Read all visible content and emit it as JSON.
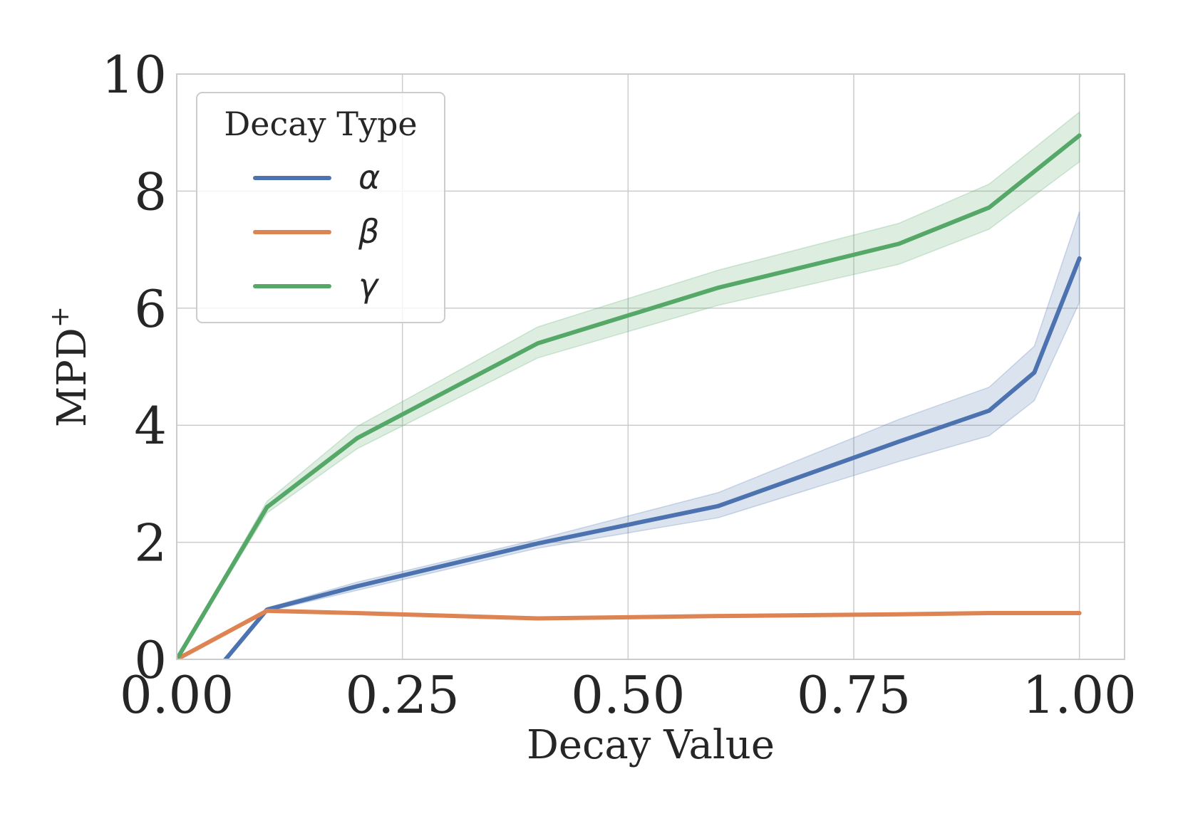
{
  "chart_data": {
    "type": "line",
    "xlabel": "Decay Value",
    "ylabel": "MPD",
    "ylabel_superscript": "+",
    "xlim": [
      0,
      1.05
    ],
    "ylim": [
      0,
      10
    ],
    "xticks": [
      "0.00",
      "0.25",
      "0.50",
      "0.75",
      "1.00"
    ],
    "yticks": [
      "0",
      "2",
      "4",
      "6",
      "8",
      "10"
    ],
    "grid": true,
    "legend": {
      "title": "Decay Type",
      "placement": "top-left"
    },
    "series": [
      {
        "name": "α",
        "color": "#4c72b0",
        "x": [
          0.0,
          0.1,
          0.2,
          0.4,
          0.6,
          0.8,
          0.9,
          0.95,
          1.0
        ],
        "y": [
          -1.0,
          0.85,
          1.25,
          1.98,
          2.62,
          3.72,
          4.25,
          4.9,
          6.85
        ],
        "lower": [
          -1.0,
          0.82,
          1.18,
          1.9,
          2.42,
          3.38,
          3.82,
          4.42,
          6.1
        ],
        "upper": [
          -1.0,
          0.88,
          1.32,
          2.05,
          2.85,
          4.1,
          4.65,
          5.35,
          7.65
        ]
      },
      {
        "name": "β",
        "color": "#dd8452",
        "x": [
          0.0,
          0.1,
          0.2,
          0.4,
          0.6,
          0.8,
          0.9,
          1.0
        ],
        "y": [
          0.0,
          0.83,
          0.79,
          0.7,
          0.74,
          0.77,
          0.79,
          0.79
        ],
        "lower": [
          0.0,
          0.81,
          0.77,
          0.68,
          0.72,
          0.75,
          0.77,
          0.77
        ],
        "upper": [
          0.0,
          0.85,
          0.81,
          0.72,
          0.76,
          0.79,
          0.81,
          0.81
        ]
      },
      {
        "name": "γ",
        "color": "#55a868",
        "x": [
          0.0,
          0.1,
          0.2,
          0.4,
          0.6,
          0.8,
          0.9,
          1.0
        ],
        "y": [
          0.0,
          2.6,
          3.78,
          5.4,
          6.35,
          7.1,
          7.72,
          8.95
        ],
        "lower": [
          0.0,
          2.5,
          3.6,
          5.15,
          6.05,
          6.75,
          7.35,
          8.5
        ],
        "upper": [
          0.0,
          2.7,
          3.98,
          5.68,
          6.65,
          7.45,
          8.12,
          9.35
        ]
      }
    ]
  }
}
